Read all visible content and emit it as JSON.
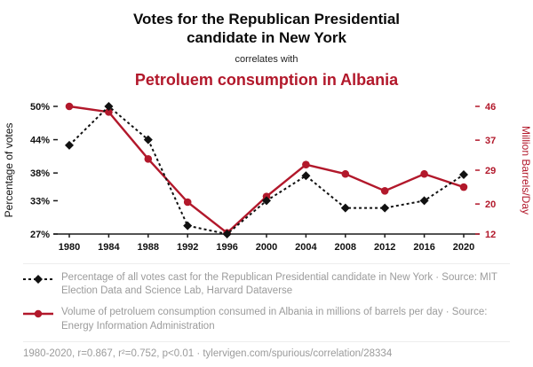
{
  "header": {
    "title_line1": "Votes for the Republican Presidential",
    "title_line2": "candidate in New York",
    "correlates_label": "correlates with",
    "subtitle": "Petroluem consumption in Albania"
  },
  "chart_data": {
    "type": "line",
    "x": [
      1980,
      1984,
      1988,
      1992,
      1996,
      2000,
      2004,
      2008,
      2012,
      2016,
      2020
    ],
    "series": [
      {
        "name": "Percentage of all votes cast for the Republican Presidential candidate in New York",
        "axis": "left",
        "color": "#111111",
        "line_style": "dotted",
        "marker": "diamond",
        "values": [
          43.0,
          50.0,
          44.0,
          28.5,
          27.0,
          33.0,
          37.5,
          31.7,
          31.7,
          33.0,
          37.7
        ]
      },
      {
        "name": "Volume of petroluem consumption consumed in Albania",
        "axis": "right",
        "color": "#b2182b",
        "line_style": "solid",
        "marker": "circle",
        "values": [
          46.0,
          44.5,
          32.0,
          20.5,
          12.3,
          22.0,
          30.5,
          28.0,
          23.5,
          28.0,
          24.5
        ]
      }
    ],
    "left_axis": {
      "label": "Percentage of votes",
      "tick_labels": [
        "50%",
        "44%",
        "38%",
        "33%",
        "27%"
      ],
      "tick_values": [
        50,
        44,
        38,
        33,
        27
      ],
      "min": 27,
      "max": 50
    },
    "right_axis": {
      "label": "Million Barrels/Day",
      "tick_labels": [
        "46",
        "37",
        "29",
        "20",
        "12"
      ],
      "tick_values": [
        46,
        37,
        29,
        20,
        12
      ],
      "min": 12,
      "max": 46
    },
    "grid": false,
    "legend_position": "below"
  },
  "legend": [
    {
      "text": "Percentage of all votes cast for the Republican Presidential candidate in New York · Source: MIT Election Data and Science Lab, Harvard Dataverse",
      "marker": "black-dotted-diamond"
    },
    {
      "text": "Volume of petroluem consumption consumed in Albania in millions of barrels per day · Source: Energy Information Administration",
      "marker": "red-solid-circle"
    }
  ],
  "footer": {
    "stats": "1980-2020, r=0.867, r²=0.752, p<0.01 · tylervigen.com/spurious/correlation/28334"
  },
  "colors": {
    "accent_red": "#b2182b",
    "series_black": "#111111",
    "muted_text": "#9b9b9b"
  }
}
